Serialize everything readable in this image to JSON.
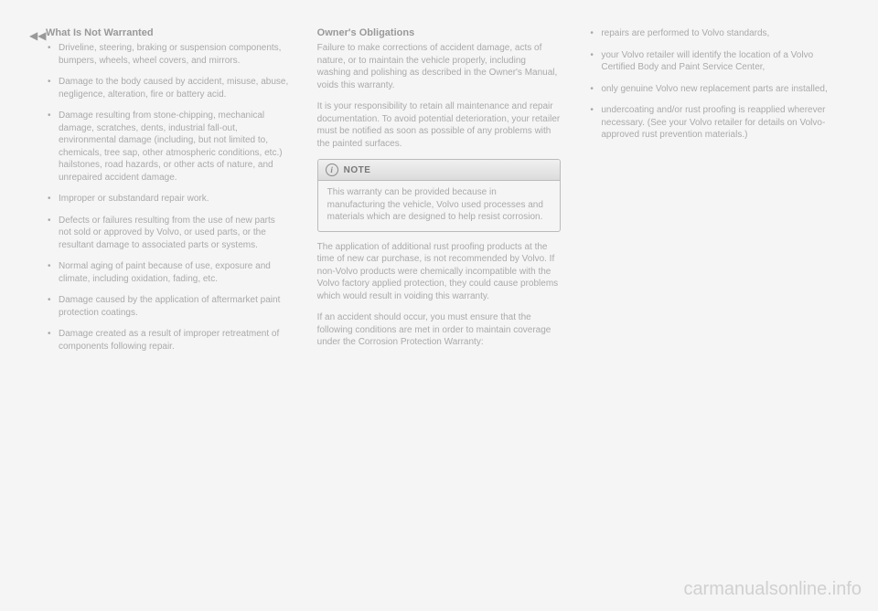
{
  "col1": {
    "continue_symbol": "◀◀",
    "title": "What Is Not Warranted",
    "items": [
      "Driveline, steering, braking or suspension components, bumpers, wheels, wheel covers, and mirrors.",
      "Damage to the body caused by accident, misuse, abuse, negligence, alteration, fire or battery acid.",
      "Damage resulting from stone-chipping, mechanical damage, scratches, dents, industrial fall-out, environmental damage (including, but not limited to, chemicals, tree sap, other atmospheric conditions, etc.) hailstones, road hazards, or other acts of nature, and unrepaired accident damage.",
      "Improper or substandard repair work.",
      "Defects or failures resulting from the use of new parts not sold or approved by Volvo, or used parts, or the resultant damage to associated parts or systems.",
      "Normal aging of paint because of use, exposure and climate, including oxidation, fading, etc.",
      "Damage caused by the application of aftermarket paint protection coatings.",
      "Damage created as a result of improper retreatment of components following repair."
    ]
  },
  "col2": {
    "title": "Owner's Obligations",
    "p1": "Failure to make corrections of accident damage, acts of nature, or to maintain the vehicle properly, including washing and polishing as described in the Owner's Manual, voids this warranty.",
    "p2": "It is your responsibility to retain all maintenance and repair documentation. To avoid potential deterioration, your retailer must be notified as soon as possible of any problems with the painted surfaces.",
    "note_label": "NOTE",
    "note_body": "This warranty can be provided because in manufacturing the vehicle, Volvo used processes and materials which are designed to help resist corrosion.",
    "p3": "The application of additional rust proofing products at the time of new car purchase, is not recommended by Volvo. If non-Volvo products were chemically incompatible with the Volvo factory applied protection, they could cause problems which would result in voiding this warranty.",
    "p4": "If an accident should occur, you must ensure that the following conditions are met in order to maintain coverage under the Corrosion Protection Warranty:"
  },
  "col3": {
    "items": [
      "repairs are performed to Volvo standards,",
      "your Volvo retailer will identify the location of a Volvo Certified Body and Paint Service Center,",
      "only genuine Volvo new replacement parts are installed,",
      "undercoating and/or rust proofing is reapplied wherever necessary. (See your Volvo retailer for details on Volvo-approved rust prevention materials.)"
    ]
  },
  "watermark": "carmanualsonline.info"
}
